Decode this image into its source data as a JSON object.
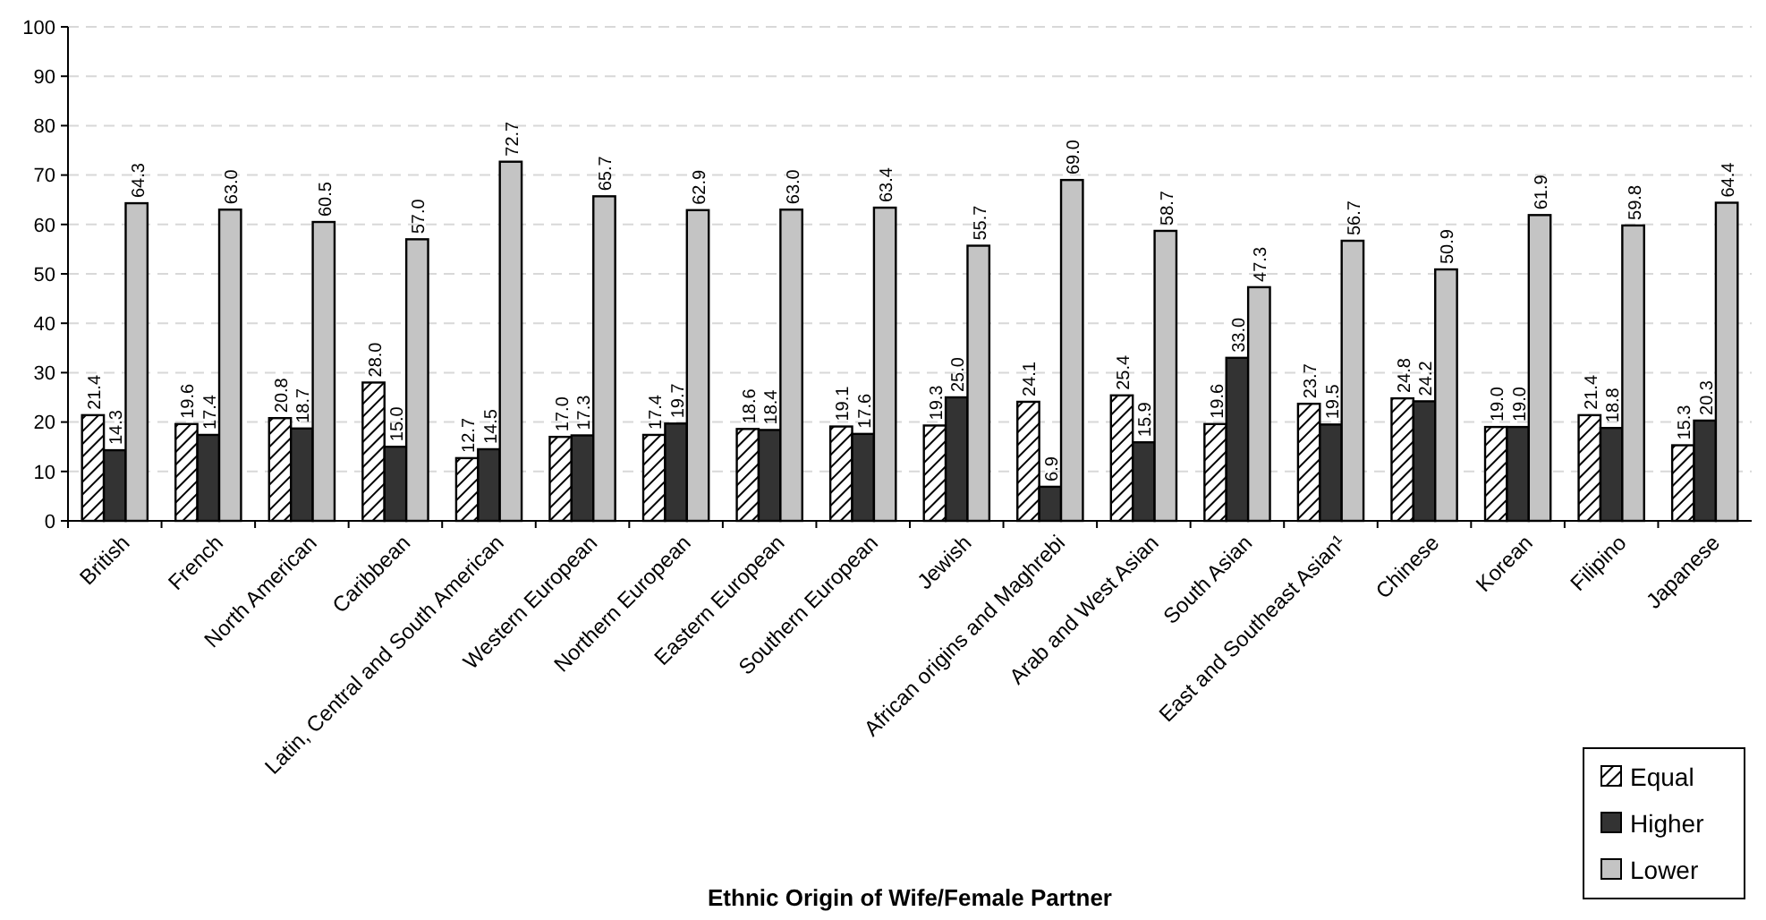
{
  "chart_data": {
    "type": "bar",
    "xlabel": "Ethnic Origin of Wife/Female Partner",
    "categories": [
      "British",
      "French",
      "North American",
      "Caribbean",
      "Latin, Central and South American",
      "Western European",
      "Northern European",
      "Eastern European",
      "Southern European",
      "Jewish",
      "African origins and Maghrebi",
      "Arab and West Asian",
      "South Asian",
      "East and Southeast Asian¹",
      "Chinese",
      "Korean",
      "Filipino",
      "Japanese"
    ],
    "series": [
      {
        "name": "Equal",
        "color": "#000000",
        "values": [
          21.4,
          19.6,
          20.8,
          28.0,
          12.7,
          17.0,
          17.4,
          18.6,
          19.1,
          19.3,
          24.1,
          25.4,
          19.6,
          23.7,
          24.8,
          19.0,
          21.4,
          15.3
        ],
        "value_labels": [
          "21.4",
          "19.6",
          "20.8",
          "28.0",
          "12.7",
          "17.0",
          "17.4",
          "18.6",
          "19.1",
          "19.3",
          "24.1",
          "25.4",
          "19.6",
          "23.7",
          "24.8",
          "19.0",
          "21.4",
          "15.3"
        ]
      },
      {
        "name": "Higher",
        "color": "#333333",
        "values": [
          14.3,
          17.4,
          18.7,
          15.0,
          14.5,
          17.3,
          19.7,
          18.4,
          17.6,
          25.0,
          6.9,
          15.9,
          33.0,
          19.5,
          24.2,
          19.0,
          18.8,
          20.3
        ],
        "value_labels": [
          "14.3",
          "17.4",
          "18.7",
          "15.0",
          "14.5",
          "17.3",
          "19.7",
          "18.4",
          "17.6",
          "25.0",
          "6.9",
          "15.9",
          "33.0",
          "19.5",
          "24.2",
          "19.0",
          "18.8",
          "20.3"
        ]
      },
      {
        "name": "Lower",
        "color": "#c4c4c4",
        "values": [
          64.3,
          63.0,
          60.5,
          57.0,
          72.7,
          65.7,
          62.9,
          63.0,
          63.4,
          55.7,
          69.0,
          58.7,
          47.3,
          56.7,
          50.9,
          61.9,
          59.8,
          64.4
        ],
        "value_labels": [
          "64.3",
          "63.0",
          "60.5",
          "57.0",
          "72.7",
          "65.7",
          "62.9",
          "63.0",
          "63.4",
          "55.7",
          "69.0",
          "58.7",
          "47.3",
          "56.7",
          "50.9",
          "61.9",
          "59.8",
          "64.4"
        ]
      }
    ],
    "ylim": [
      0,
      100
    ],
    "yticks": [
      0,
      10,
      20,
      30,
      40,
      50,
      60,
      70,
      80,
      90,
      100
    ],
    "grid": "y",
    "legend": "bottom right"
  }
}
